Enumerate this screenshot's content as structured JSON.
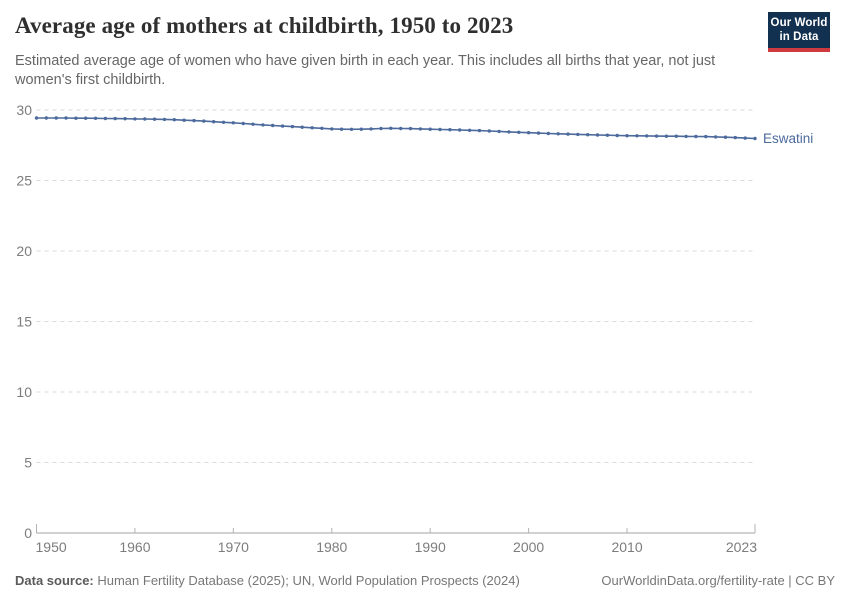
{
  "header": {
    "title": "Average age of mothers at childbirth, 1950 to 2023",
    "subtitle": "Estimated average age of women who have given birth in each year. This includes all births that year, not just women's first childbirth.",
    "logo": {
      "line1": "Our World",
      "line2": "in Data",
      "bg_color": "#12304f",
      "accent_color": "#cf3a3e"
    }
  },
  "footer": {
    "source_label": "Data source:",
    "source_text": " Human Fertility Database (2025); UN, World Population Prospects (2024)",
    "link_text": "OurWorldinData.org/fertility-rate | CC BY"
  },
  "chart_data": {
    "type": "line",
    "title": "Average age of mothers at childbirth, 1950 to 2023",
    "xlabel": "",
    "ylabel": "",
    "xlim": [
      1950,
      2023
    ],
    "ylim": [
      0,
      30
    ],
    "xticks": [
      1950,
      1960,
      1970,
      1980,
      1990,
      2000,
      2010,
      2023
    ],
    "yticks": [
      0,
      5,
      10,
      15,
      20,
      25,
      30
    ],
    "grid": "horizontal-dashed",
    "legend_position": "end-of-line-label",
    "colors": {
      "gridline": "#d9d9d9",
      "axis": "#a6a6a6",
      "tick": "#b3b3b3",
      "tick_label": "#7d7d7d"
    },
    "x": [
      1950,
      1951,
      1952,
      1953,
      1954,
      1955,
      1956,
      1957,
      1958,
      1959,
      1960,
      1961,
      1962,
      1963,
      1964,
      1965,
      1966,
      1967,
      1968,
      1969,
      1970,
      1971,
      1972,
      1973,
      1974,
      1975,
      1976,
      1977,
      1978,
      1979,
      1980,
      1981,
      1982,
      1983,
      1984,
      1985,
      1986,
      1987,
      1988,
      1989,
      1990,
      1991,
      1992,
      1993,
      1994,
      1995,
      1996,
      1997,
      1998,
      1999,
      2000,
      2001,
      2002,
      2003,
      2004,
      2005,
      2006,
      2007,
      2008,
      2009,
      2010,
      2011,
      2012,
      2013,
      2014,
      2015,
      2016,
      2017,
      2018,
      2019,
      2020,
      2021,
      2022,
      2023
    ],
    "series": [
      {
        "name": "Eswatini",
        "color": "#4C6A9C",
        "values": [
          29.43,
          29.43,
          29.43,
          29.43,
          29.42,
          29.42,
          29.41,
          29.4,
          29.39,
          29.38,
          29.37,
          29.36,
          29.35,
          29.33,
          29.31,
          29.28,
          29.25,
          29.21,
          29.17,
          29.13,
          29.09,
          29.04,
          28.99,
          28.94,
          28.9,
          28.86,
          28.82,
          28.78,
          28.74,
          28.7,
          28.66,
          28.64,
          28.63,
          28.64,
          28.66,
          28.69,
          28.7,
          28.69,
          28.68,
          28.66,
          28.64,
          28.62,
          28.6,
          28.58,
          28.56,
          28.54,
          28.51,
          28.48,
          28.45,
          28.42,
          28.39,
          28.36,
          28.33,
          28.31,
          28.29,
          28.27,
          28.25,
          28.23,
          28.21,
          28.19,
          28.18,
          28.17,
          28.16,
          28.15,
          28.14,
          28.14,
          28.13,
          28.12,
          28.11,
          28.09,
          28.07,
          28.04,
          28.01,
          27.98
        ]
      }
    ]
  }
}
